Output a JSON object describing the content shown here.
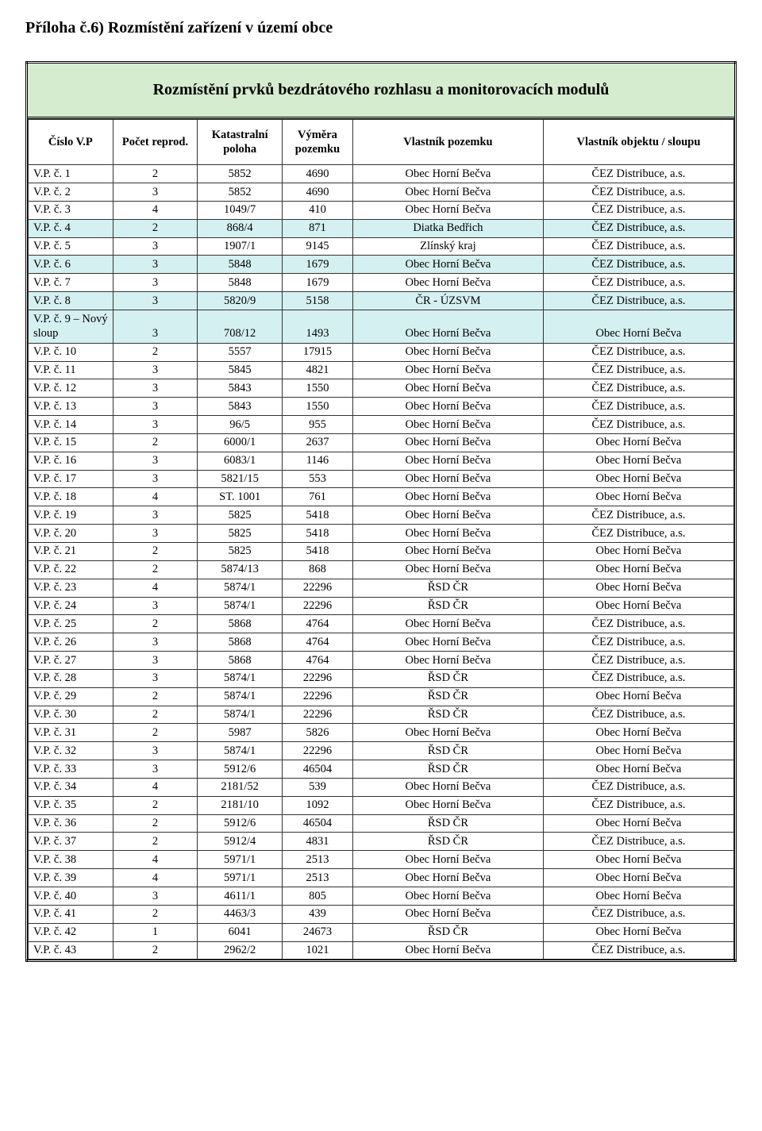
{
  "title": "Příloha č.6) Rozmístění zařízení v území obce",
  "banner": "Rozmístění prvků bezdrátového rozhlasu a monitorovacích modulů",
  "colors": {
    "banner_bg": "#d5ecce",
    "highlight_bg": "#d5f0f0",
    "border": "#333333",
    "text": "#000000",
    "background": "#ffffff"
  },
  "typography": {
    "title_fontsize": 20,
    "banner_fontsize": 20,
    "table_fontsize": 14.5,
    "font_family": "Georgia / serif"
  },
  "table": {
    "columns": [
      "Číslo V.P",
      "Počet reprod.",
      "Katastralní poloha",
      "Výměra pozemku",
      "Vlastník pozemku",
      "Vlastník objektu / sloupu"
    ],
    "col_align": [
      "left",
      "center",
      "center",
      "center",
      "center",
      "center"
    ],
    "rows": [
      {
        "hl": false,
        "c": [
          "V.P. č. 1",
          "2",
          "5852",
          "4690",
          "Obec Horní Bečva",
          "ČEZ Distribuce, a.s."
        ]
      },
      {
        "hl": false,
        "c": [
          "V.P. č. 2",
          "3",
          "5852",
          "4690",
          "Obec Horní Bečva",
          "ČEZ Distribuce, a.s."
        ]
      },
      {
        "hl": false,
        "c": [
          "V.P. č. 3",
          "4",
          "1049/7",
          "410",
          "Obec Horní Bečva",
          "ČEZ Distribuce, a.s."
        ]
      },
      {
        "hl": true,
        "c": [
          "V.P. č. 4",
          "2",
          "868/4",
          "871",
          "Diatka Bedřich",
          "ČEZ Distribuce, a.s."
        ]
      },
      {
        "hl": false,
        "c": [
          "V.P. č. 5",
          "3",
          "1907/1",
          "9145",
          "Zlínský kraj",
          "ČEZ Distribuce, a.s."
        ]
      },
      {
        "hl": true,
        "c": [
          "V.P. č. 6",
          "3",
          "5848",
          "1679",
          "Obec Horní Bečva",
          "ČEZ Distribuce, a.s."
        ]
      },
      {
        "hl": false,
        "c": [
          "V.P. č. 7",
          "3",
          "5848",
          "1679",
          "Obec Horní Bečva",
          "ČEZ Distribuce, a.s."
        ]
      },
      {
        "hl": true,
        "c": [
          "V.P. č. 8",
          "3",
          "5820/9",
          "5158",
          "ČR - ÚZSVM",
          "ČEZ Distribuce, a.s."
        ]
      },
      {
        "hl": true,
        "c": [
          "V.P. č. 9 – Nový sloup",
          "3",
          "708/12",
          "1493",
          "Obec Horní Bečva",
          "Obec Horní Bečva"
        ]
      },
      {
        "hl": false,
        "c": [
          "V.P. č. 10",
          "2",
          "5557",
          "17915",
          "Obec Horní Bečva",
          "ČEZ Distribuce, a.s."
        ]
      },
      {
        "hl": false,
        "c": [
          "V.P. č. 11",
          "3",
          "5845",
          "4821",
          "Obec Horní Bečva",
          "ČEZ Distribuce, a.s."
        ]
      },
      {
        "hl": false,
        "c": [
          "V.P. č. 12",
          "3",
          "5843",
          "1550",
          "Obec Horní Bečva",
          "ČEZ Distribuce, a.s."
        ]
      },
      {
        "hl": false,
        "c": [
          "V.P. č. 13",
          "3",
          "5843",
          "1550",
          "Obec Horní Bečva",
          "ČEZ Distribuce, a.s."
        ]
      },
      {
        "hl": false,
        "c": [
          "V.P. č. 14",
          "3",
          "96/5",
          "955",
          "Obec Horní Bečva",
          "ČEZ Distribuce, a.s."
        ]
      },
      {
        "hl": false,
        "c": [
          "V.P. č. 15",
          "2",
          "6000/1",
          "2637",
          "Obec Horní Bečva",
          "Obec Horní Bečva"
        ]
      },
      {
        "hl": false,
        "c": [
          "V.P. č. 16",
          "3",
          "6083/1",
          "1146",
          "Obec Horní Bečva",
          "Obec Horní Bečva"
        ]
      },
      {
        "hl": false,
        "c": [
          "V.P. č. 17",
          "3",
          "5821/15",
          "553",
          "Obec Horní Bečva",
          "Obec Horní Bečva"
        ]
      },
      {
        "hl": false,
        "c": [
          "V.P. č. 18",
          "4",
          "ST. 1001",
          "761",
          "Obec Horní Bečva",
          "Obec Horní Bečva"
        ]
      },
      {
        "hl": false,
        "c": [
          "V.P. č. 19",
          "3",
          "5825",
          "5418",
          "Obec Horní Bečva",
          "ČEZ Distribuce, a.s."
        ]
      },
      {
        "hl": false,
        "c": [
          "V.P. č. 20",
          "3",
          "5825",
          "5418",
          "Obec Horní Bečva",
          "ČEZ Distribuce, a.s."
        ]
      },
      {
        "hl": false,
        "c": [
          "V.P. č. 21",
          "2",
          "5825",
          "5418",
          "Obec Horní Bečva",
          "Obec Horní Bečva"
        ]
      },
      {
        "hl": false,
        "c": [
          "V.P. č. 22",
          "2",
          "5874/13",
          "868",
          "Obec Horní Bečva",
          "Obec Horní Bečva"
        ]
      },
      {
        "hl": false,
        "c": [
          "V.P. č. 23",
          "4",
          "5874/1",
          "22296",
          "ŘSD ČR",
          "Obec Horní Bečva"
        ]
      },
      {
        "hl": false,
        "c": [
          "V.P. č. 24",
          "3",
          "5874/1",
          "22296",
          "ŘSD ČR",
          "Obec Horní Bečva"
        ]
      },
      {
        "hl": false,
        "c": [
          "V.P. č. 25",
          "2",
          "5868",
          "4764",
          "Obec Horní Bečva",
          "ČEZ Distribuce, a.s."
        ]
      },
      {
        "hl": false,
        "c": [
          "V.P. č. 26",
          "3",
          "5868",
          "4764",
          "Obec Horní Bečva",
          "ČEZ Distribuce, a.s."
        ]
      },
      {
        "hl": false,
        "c": [
          "V.P. č. 27",
          "3",
          "5868",
          "4764",
          "Obec Horní Bečva",
          "ČEZ Distribuce, a.s."
        ]
      },
      {
        "hl": false,
        "c": [
          "V.P. č. 28",
          "3",
          "5874/1",
          "22296",
          "ŘSD ČR",
          "ČEZ Distribuce, a.s."
        ]
      },
      {
        "hl": false,
        "c": [
          "V.P. č. 29",
          "2",
          "5874/1",
          "22296",
          "ŘSD ČR",
          "Obec Horní Bečva"
        ]
      },
      {
        "hl": false,
        "c": [
          "V.P. č. 30",
          "2",
          "5874/1",
          "22296",
          "ŘSD ČR",
          "ČEZ Distribuce, a.s."
        ]
      },
      {
        "hl": false,
        "c": [
          "V.P. č. 31",
          "2",
          "5987",
          "5826",
          "Obec Horní Bečva",
          "Obec Horní Bečva"
        ]
      },
      {
        "hl": false,
        "c": [
          "V.P. č. 32",
          "3",
          "5874/1",
          "22296",
          "ŘSD ČR",
          "Obec Horní Bečva"
        ]
      },
      {
        "hl": false,
        "c": [
          "V.P. č. 33",
          "3",
          "5912/6",
          "46504",
          "ŘSD ČR",
          "Obec Horní Bečva"
        ]
      },
      {
        "hl": false,
        "c": [
          "V.P. č. 34",
          "4",
          "2181/52",
          "539",
          "Obec Horní Bečva",
          "ČEZ Distribuce, a.s."
        ]
      },
      {
        "hl": false,
        "c": [
          "V.P. č. 35",
          "2",
          "2181/10",
          "1092",
          "Obec Horní Bečva",
          "ČEZ Distribuce, a.s."
        ]
      },
      {
        "hl": false,
        "c": [
          "V.P. č. 36",
          "2",
          "5912/6",
          "46504",
          "ŘSD ČR",
          "Obec Horní Bečva"
        ]
      },
      {
        "hl": false,
        "c": [
          "V.P. č. 37",
          "2",
          "5912/4",
          "4831",
          "ŘSD ČR",
          "ČEZ Distribuce, a.s."
        ]
      },
      {
        "hl": false,
        "c": [
          "V.P. č. 38",
          "4",
          "5971/1",
          "2513",
          "Obec Horní Bečva",
          "Obec Horní Bečva"
        ]
      },
      {
        "hl": false,
        "c": [
          "V.P. č. 39",
          "4",
          "5971/1",
          "2513",
          "Obec Horní Bečva",
          "Obec Horní Bečva"
        ]
      },
      {
        "hl": false,
        "c": [
          "V.P. č. 40",
          "3",
          "4611/1",
          "805",
          "Obec Horní Bečva",
          "Obec Horní Bečva"
        ]
      },
      {
        "hl": false,
        "c": [
          "V.P. č. 41",
          "2",
          "4463/3",
          "439",
          "Obec Horní Bečva",
          "ČEZ Distribuce, a.s."
        ]
      },
      {
        "hl": false,
        "c": [
          "V.P. č. 42",
          "1",
          "6041",
          "24673",
          "ŘSD ČR",
          "Obec Horní Bečva"
        ]
      },
      {
        "hl": false,
        "c": [
          "V.P. č. 43",
          "2",
          "2962/2",
          "1021",
          "Obec Horní Bečva",
          "ČEZ Distribuce, a.s."
        ]
      }
    ]
  }
}
